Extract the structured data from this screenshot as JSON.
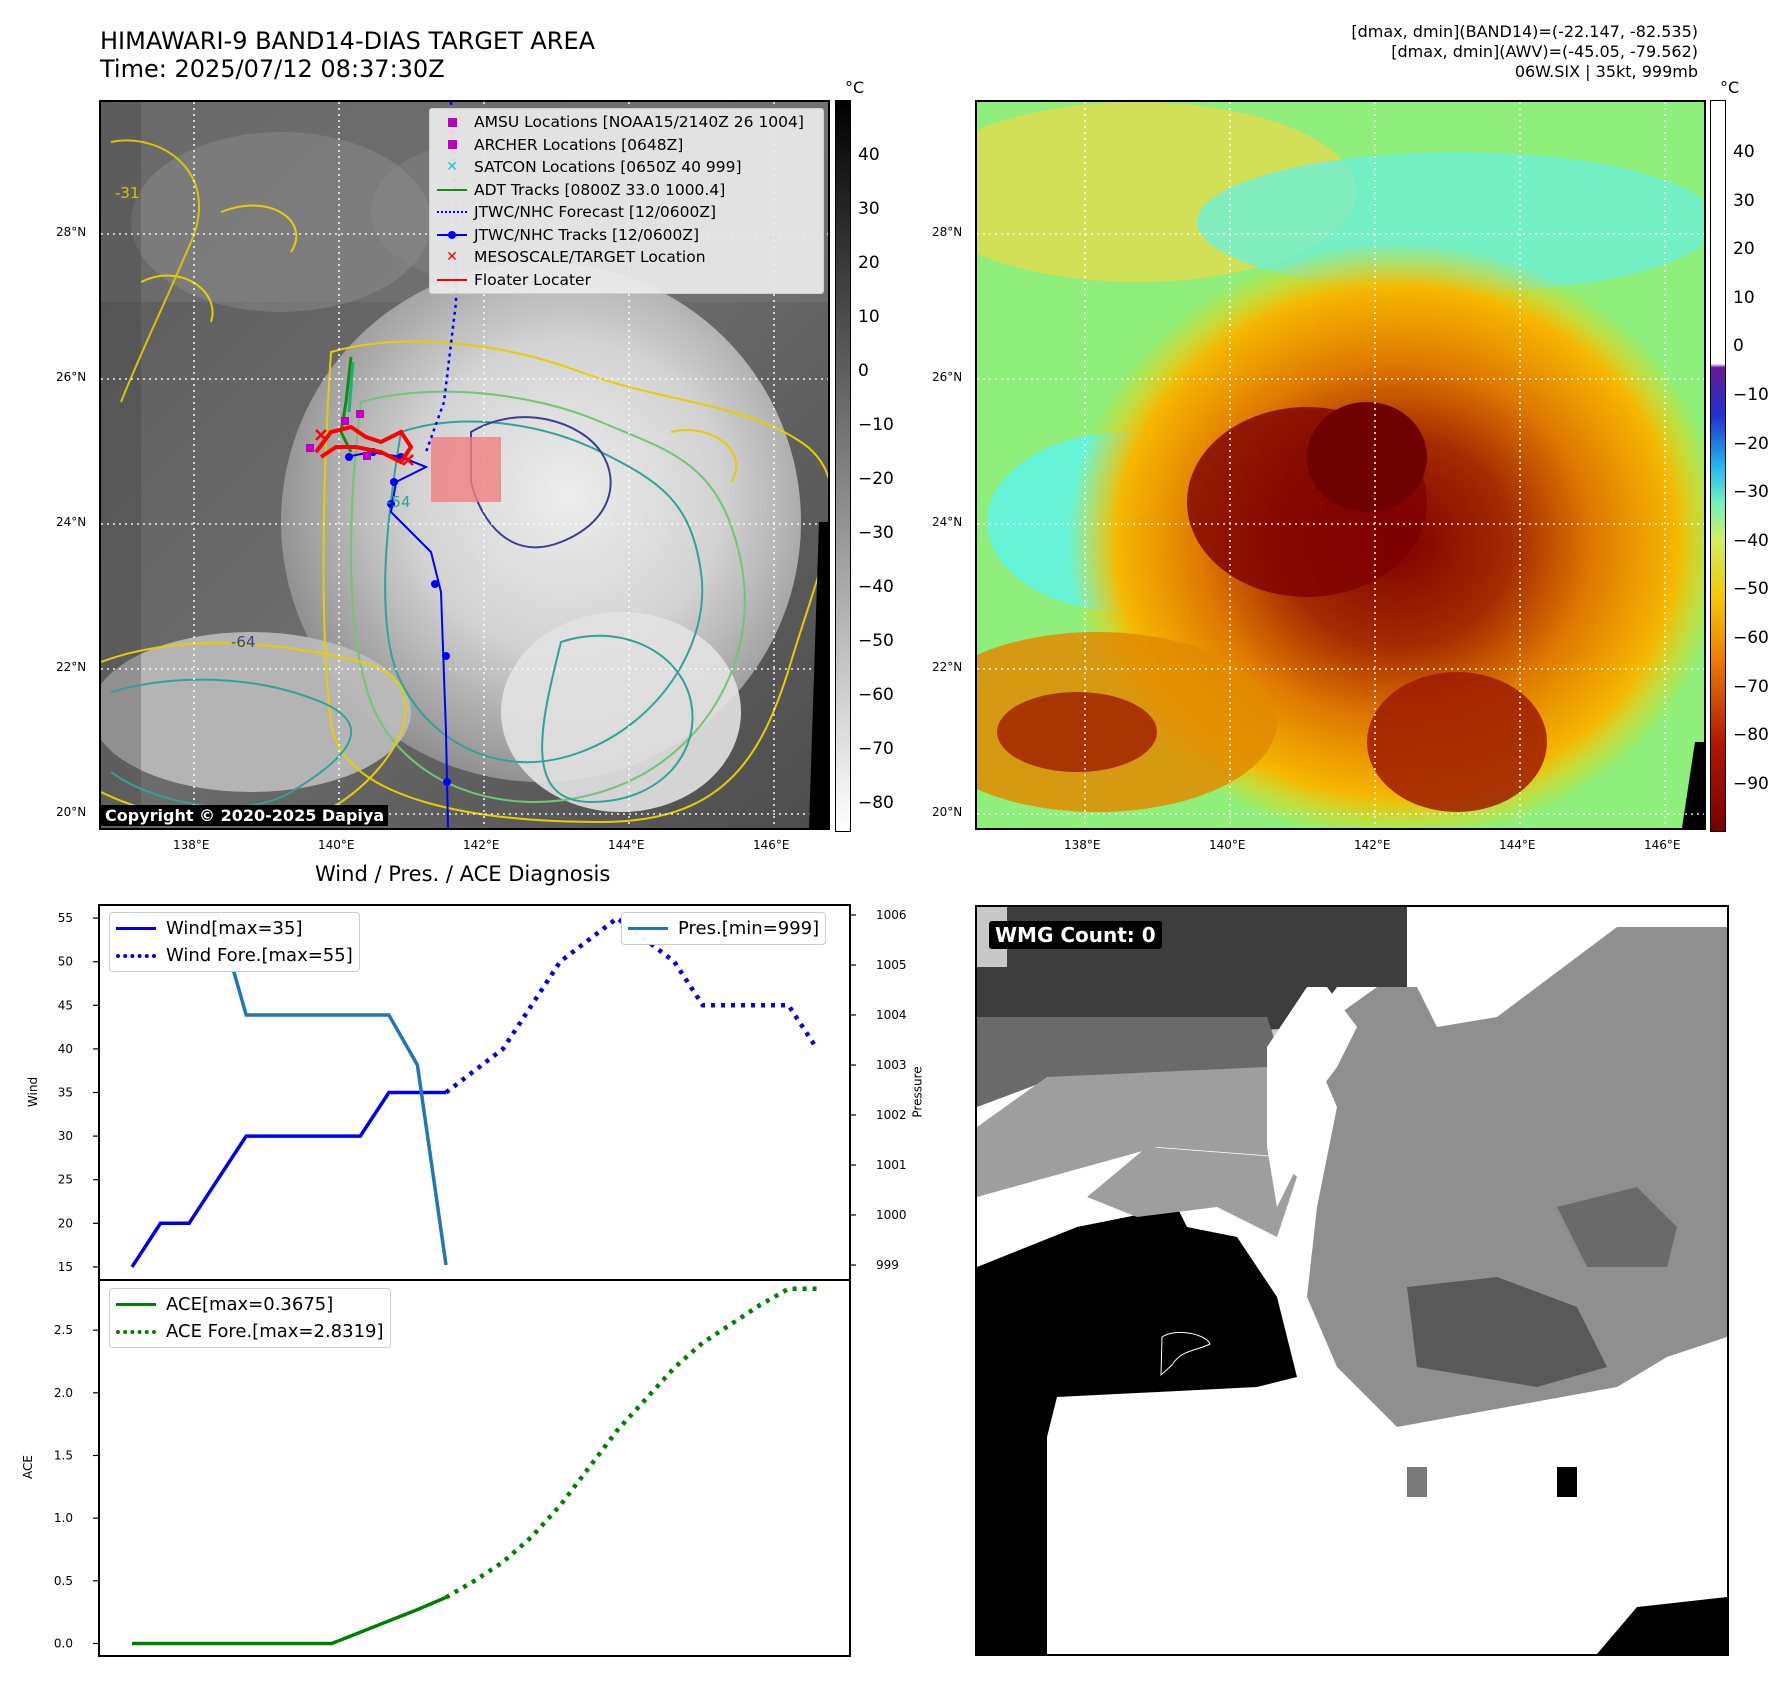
{
  "header": {
    "title_line1": "HIMAWARI-9 BAND14-DIAS TARGET AREA",
    "title_line2": "Time: 2025/07/12 08:37:30Z",
    "info_line1": "[dmax, dmin](BAND14)=(-22.147, -82.535)",
    "info_line2": "[dmax, dmin](AWV)=(-45.05, -79.562)",
    "info_line3": "06W.SIX | 35kt, 999mb"
  },
  "map_axes": {
    "lat_labels": [
      "28°N",
      "26°N",
      "24°N",
      "22°N",
      "20°N"
    ],
    "lon_labels": [
      "138°E",
      "140°E",
      "142°E",
      "144°E",
      "146°E"
    ],
    "copyright": "Copyright © 2020-2025 Dapiya",
    "contour_labels": [
      "-31",
      "-54",
      "-64"
    ]
  },
  "left_colorbar": {
    "unit": "°C",
    "ticks": [
      "40",
      "30",
      "20",
      "10",
      "0",
      "−10",
      "−20",
      "−30",
      "−40",
      "−50",
      "−60",
      "−70",
      "−80"
    ]
  },
  "right_colorbar": {
    "unit": "°C",
    "ticks": [
      "40",
      "30",
      "20",
      "10",
      "0",
      "−10",
      "−20",
      "−30",
      "−40",
      "−50",
      "−60",
      "−70",
      "−80",
      "−90"
    ]
  },
  "map_legend": [
    {
      "label": "AMSU Locations [NOAA15/2140Z 26 1004]",
      "symbol": "square",
      "color": "#c000c0"
    },
    {
      "label": "ARCHER Locations [0648Z]",
      "symbol": "square",
      "color": "#c000c0"
    },
    {
      "label": "SATCON Locations [0650Z 40 999]",
      "symbol": "x",
      "color": "#22c4c4"
    },
    {
      "label": "ADT Tracks [0800Z 33.0 1000.4]",
      "symbol": "line",
      "color": "#138a13"
    },
    {
      "label": "JTWC/NHC Forecast [12/0600Z]",
      "symbol": "dotted",
      "color": "#0000ff"
    },
    {
      "label": "JTWC/NHC Tracks [12/0600Z]",
      "symbol": "line-dot",
      "color": "#0000ff"
    },
    {
      "label": "MESOSCALE/TARGET Location",
      "symbol": "x",
      "color": "#ff0000"
    },
    {
      "label": "Floater Locater",
      "symbol": "line",
      "color": "#ff0000"
    }
  ],
  "diag": {
    "title": "Wind / Pres. / ACE Diagnosis",
    "wind_ylabel": "Wind",
    "pres_ylabel": "Pressure",
    "ace_ylabel": "ACE",
    "wind_ticks": [
      "55",
      "50",
      "45",
      "40",
      "35",
      "30",
      "25",
      "20",
      "15"
    ],
    "pres_ticks": [
      "1006",
      "1005",
      "1004",
      "1003",
      "1002",
      "1001",
      "1000",
      "999"
    ],
    "ace_ticks": [
      "2.5",
      "2.0",
      "1.5",
      "1.0",
      "0.5",
      "0.0"
    ],
    "legend_wind": "Wind[max=35]",
    "legend_wind_fore": "Wind Fore.[max=55]",
    "legend_pres": "Pres.[min=999]",
    "legend_ace": "ACE[max=0.3675]",
    "legend_ace_fore": "ACE Fore.[max=2.8319]"
  },
  "wmg": {
    "label": "WMG Count: 0"
  },
  "colors": {
    "wind": "#0000ee",
    "pressure": "#1f77b4",
    "ace": "#008000"
  },
  "chart_data": [
    {
      "type": "line",
      "title": "Wind / Pres. / ACE Diagnosis",
      "ylabel": "Wind",
      "ylim": [
        13.5,
        56.5
      ],
      "x": [
        0,
        1,
        2,
        3,
        4,
        5,
        6,
        7,
        8,
        9,
        10,
        11,
        12,
        13,
        14,
        15,
        16,
        17,
        18,
        19,
        20,
        21,
        22,
        23,
        24
      ],
      "series": [
        {
          "name": "Wind[max=35]",
          "x": [
            0,
            1,
            2,
            3,
            4,
            5,
            6,
            7,
            8,
            9,
            10,
            11
          ],
          "values": [
            15,
            20,
            20,
            25,
            30,
            30,
            30,
            30,
            30,
            35,
            35,
            35
          ]
        },
        {
          "name": "Wind Fore.[max=55]",
          "x": [
            11,
            12,
            13,
            14,
            15,
            16,
            17,
            18,
            19,
            20,
            21,
            22,
            23,
            24
          ],
          "values": [
            35,
            37.5,
            40,
            45,
            50,
            52.5,
            55,
            52.5,
            50,
            45,
            45,
            45,
            45,
            40
          ]
        }
      ]
    },
    {
      "type": "line",
      "ylabel": "Pressure",
      "ylim": [
        998.7,
        1006.2
      ],
      "series": [
        {
          "name": "Pres.[min=999]",
          "x": [
            0,
            1,
            2,
            3,
            4,
            5,
            6,
            7,
            8,
            9,
            10,
            11
          ],
          "values": [
            1006,
            1006,
            1006,
            1006,
            1004,
            1004,
            1004,
            1004,
            1004,
            1004,
            1003,
            999
          ]
        }
      ]
    },
    {
      "type": "line",
      "ylabel": "ACE",
      "ylim": [
        -0.1,
        2.9
      ],
      "series": [
        {
          "name": "ACE[max=0.3675]",
          "x": [
            0,
            1,
            2,
            3,
            4,
            5,
            6,
            7,
            8,
            9,
            10,
            11
          ],
          "values": [
            0,
            0,
            0,
            0,
            0,
            0,
            0,
            0,
            0.09,
            0.18,
            0.27,
            0.3675
          ]
        },
        {
          "name": "ACE Fore.[max=2.8319]",
          "x": [
            11,
            12,
            13,
            14,
            15,
            16,
            17,
            18,
            19,
            20,
            21,
            22,
            23,
            24
          ],
          "values": [
            0.3675,
            0.5,
            0.65,
            0.85,
            1.1,
            1.4,
            1.7,
            1.95,
            2.2,
            2.4,
            2.55,
            2.7,
            2.83,
            2.83
          ]
        }
      ]
    }
  ]
}
